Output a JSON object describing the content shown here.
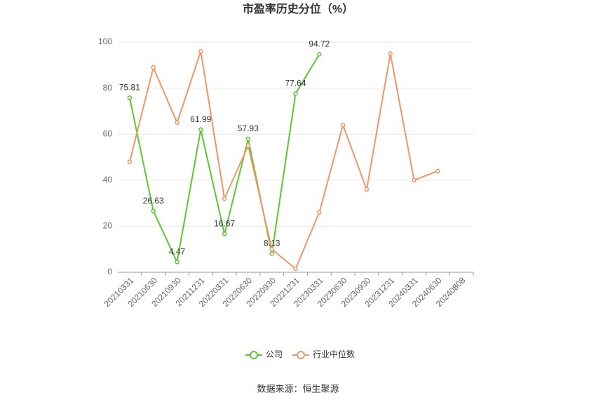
{
  "chart_data": {
    "type": "line",
    "title": "市盈率历史分位（%）",
    "source": "数据来源：恒生聚源",
    "categories": [
      "20210331",
      "20210630",
      "20210930",
      "20211231",
      "20220331",
      "20220630",
      "20220930",
      "20221231",
      "20230331",
      "20230630",
      "20230930",
      "20231231",
      "20240331",
      "20240630",
      "20240808"
    ],
    "series": [
      {
        "name": "公司",
        "color": "#5ac832",
        "values": [
          75.81,
          26.63,
          4.47,
          61.99,
          16.67,
          57.93,
          8.13,
          77.64,
          94.72,
          null,
          null,
          null,
          null,
          null,
          null
        ],
        "labels": true
      },
      {
        "name": "行业中位数",
        "color": "#f2956a",
        "values": [
          48,
          89,
          65,
          96,
          32,
          55,
          10,
          1.5,
          26,
          64,
          36,
          95,
          40,
          44,
          null
        ],
        "labels": false
      }
    ],
    "ylim": [
      0,
      100
    ],
    "yticks": [
      0,
      20,
      40,
      60,
      80,
      100
    ],
    "grid": true,
    "legend": "bottom"
  }
}
